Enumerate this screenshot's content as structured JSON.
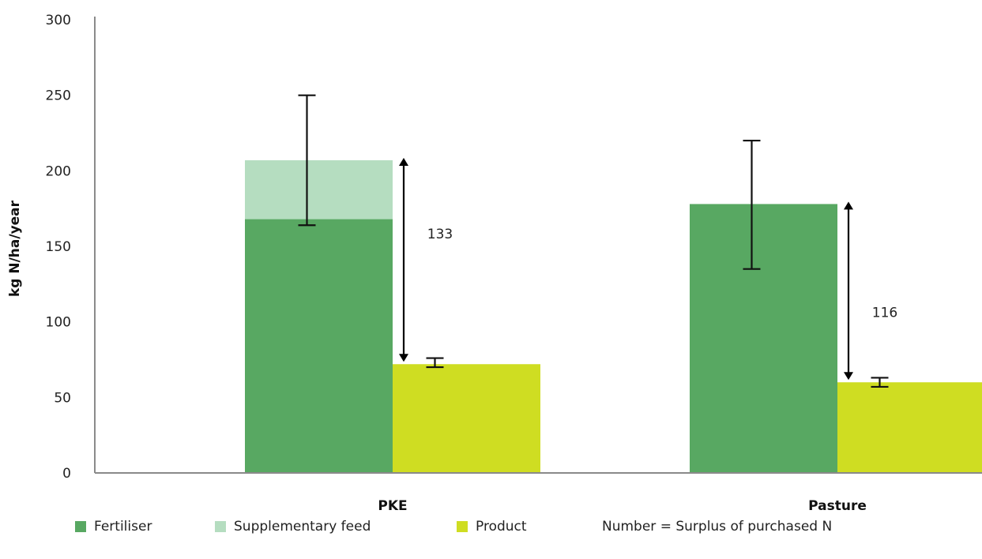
{
  "chart_data": {
    "type": "bar",
    "title": "",
    "xlabel": "",
    "ylabel": "kg N/ha/year",
    "ylim": [
      0,
      300
    ],
    "yticks": [
      0,
      50,
      100,
      150,
      200,
      250,
      300
    ],
    "grid": false,
    "legend_position": "bottom",
    "categories": [
      "PKE",
      "Pasture"
    ],
    "series": [
      {
        "name": "Fertiliser",
        "color": "#58a862",
        "values": [
          168,
          178
        ],
        "stack": "input"
      },
      {
        "name": "Supplementary feed",
        "color": "#b5ddc0",
        "values": [
          39,
          0
        ],
        "stack": "input"
      },
      {
        "name": "Product",
        "color": "#cfdd22",
        "values": [
          72,
          60
        ],
        "stack": "output"
      }
    ],
    "error_bars": [
      {
        "category": "PKE",
        "stack": "input",
        "low": 164,
        "high": 250
      },
      {
        "category": "Pasture",
        "stack": "input",
        "low": 135,
        "high": 220
      },
      {
        "category": "PKE",
        "stack": "output",
        "low": 70,
        "high": 76
      },
      {
        "category": "Pasture",
        "stack": "output",
        "low": 57,
        "high": 63
      }
    ],
    "annotations": [
      {
        "category": "PKE",
        "label": "133",
        "from": 207,
        "to": 72
      },
      {
        "category": "Pasture",
        "label": "116",
        "from": 178,
        "to": 60
      }
    ],
    "legend_note": "Number = Surplus of purchased N"
  }
}
